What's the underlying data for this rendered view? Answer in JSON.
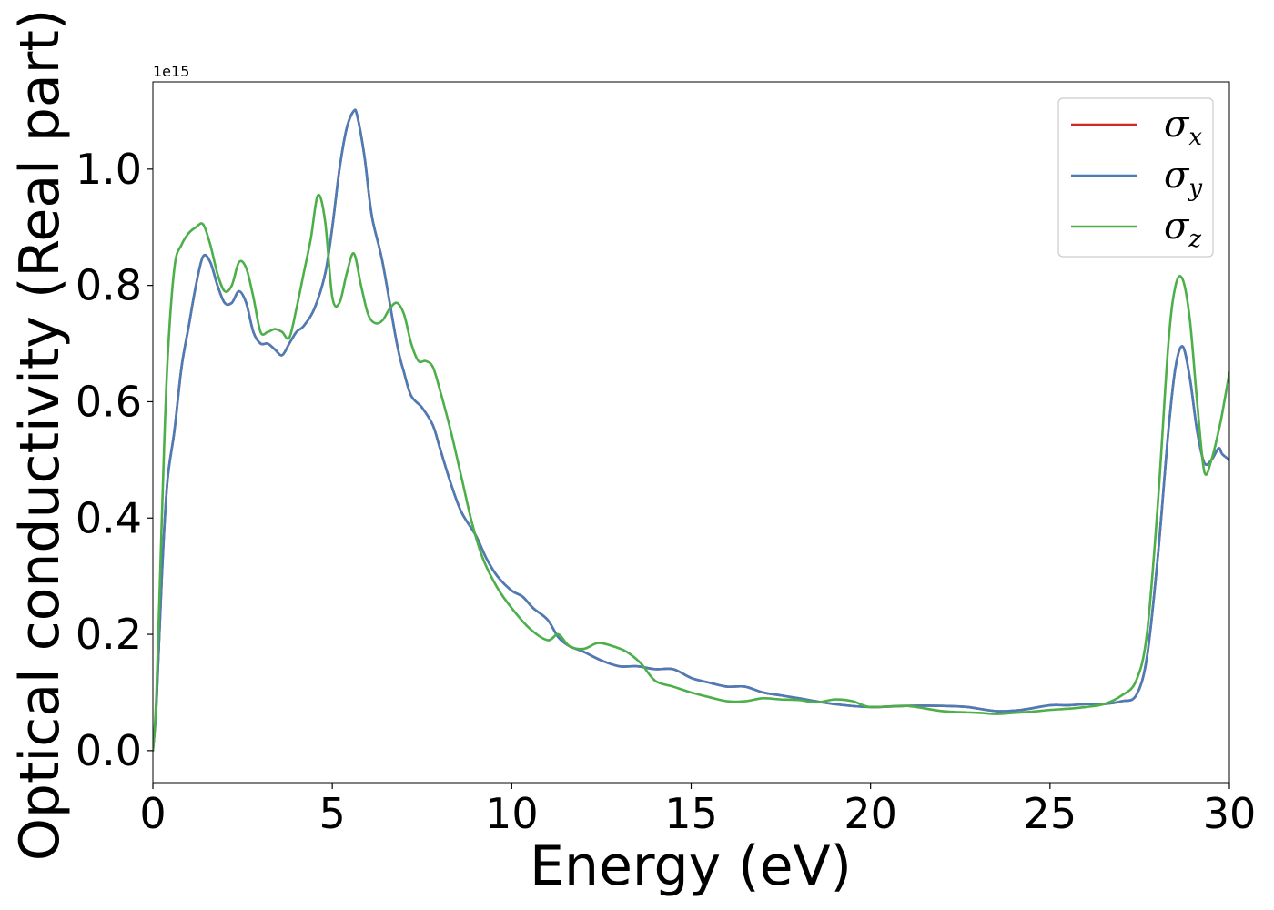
{
  "chart_data": {
    "type": "line",
    "title": "",
    "xlabel": "Energy (eV)",
    "ylabel": "Optical conductivity (Real part)",
    "y_offset_text": "1e15",
    "xlim": [
      0,
      30
    ],
    "ylim": [
      -0.055,
      1.15
    ],
    "y_scale": 1000000000000000.0,
    "grid": false,
    "legend_position": "top-right",
    "x_ticks": [
      0,
      5,
      10,
      15,
      20,
      25,
      30
    ],
    "x_tick_labels": [
      "0",
      "5",
      "10",
      "15",
      "20",
      "25",
      "30"
    ],
    "y_ticks": [
      0.0,
      0.2,
      0.4,
      0.6,
      0.8,
      1.0
    ],
    "y_tick_labels": [
      "0.0",
      "0.2",
      "0.4",
      "0.6",
      "0.8",
      "1.0"
    ],
    "series": [
      {
        "name": "σx",
        "symbol": "σ",
        "subscript": "x",
        "color": "#d62728",
        "x": [
          0,
          0.1,
          0.25,
          0.4,
          0.6,
          0.8,
          1.0,
          1.2,
          1.4,
          1.6,
          1.8,
          2.0,
          2.2,
          2.4,
          2.6,
          2.8,
          3.0,
          3.2,
          3.4,
          3.6,
          3.8,
          4.0,
          4.2,
          4.5,
          4.8,
          5.0,
          5.2,
          5.4,
          5.6,
          5.7,
          5.9,
          6.1,
          6.4,
          6.8,
          7.0,
          7.2,
          7.5,
          7.8,
          8.0,
          8.3,
          8.6,
          9.0,
          9.3,
          9.6,
          10.0,
          10.3,
          10.6,
          11.0,
          11.3,
          11.6,
          12.0,
          12.5,
          13.0,
          13.5,
          14.0,
          14.5,
          15.0,
          15.5,
          16.0,
          16.5,
          17.0,
          17.5,
          18.0,
          19.0,
          20.0,
          21.0,
          22.0,
          22.7,
          23.5,
          24.2,
          25.0,
          25.5,
          26.0,
          26.5,
          27.0,
          27.4,
          27.7,
          28.0,
          28.3,
          28.5,
          28.7,
          28.9,
          29.1,
          29.3,
          29.5,
          29.7,
          29.8,
          30.0
        ],
        "y": [
          0.0,
          0.08,
          0.3,
          0.46,
          0.55,
          0.66,
          0.73,
          0.8,
          0.85,
          0.84,
          0.8,
          0.77,
          0.77,
          0.79,
          0.77,
          0.72,
          0.7,
          0.7,
          0.69,
          0.68,
          0.7,
          0.72,
          0.73,
          0.76,
          0.82,
          0.9,
          1.0,
          1.07,
          1.1,
          1.09,
          1.02,
          0.92,
          0.84,
          0.7,
          0.65,
          0.61,
          0.59,
          0.56,
          0.52,
          0.46,
          0.41,
          0.37,
          0.33,
          0.3,
          0.275,
          0.265,
          0.245,
          0.225,
          0.195,
          0.18,
          0.17,
          0.155,
          0.145,
          0.145,
          0.14,
          0.14,
          0.125,
          0.117,
          0.11,
          0.11,
          0.1,
          0.095,
          0.09,
          0.08,
          0.075,
          0.077,
          0.077,
          0.075,
          0.068,
          0.07,
          0.078,
          0.078,
          0.08,
          0.08,
          0.085,
          0.095,
          0.16,
          0.33,
          0.55,
          0.66,
          0.695,
          0.64,
          0.55,
          0.495,
          0.5,
          0.52,
          0.51,
          0.5
        ]
      },
      {
        "name": "σy",
        "symbol": "σ",
        "subscript": "y",
        "color": "#4a7db8",
        "x": [
          0,
          0.1,
          0.25,
          0.4,
          0.6,
          0.8,
          1.0,
          1.2,
          1.4,
          1.6,
          1.8,
          2.0,
          2.2,
          2.4,
          2.6,
          2.8,
          3.0,
          3.2,
          3.4,
          3.6,
          3.8,
          4.0,
          4.2,
          4.5,
          4.8,
          5.0,
          5.2,
          5.4,
          5.6,
          5.7,
          5.9,
          6.1,
          6.4,
          6.8,
          7.0,
          7.2,
          7.5,
          7.8,
          8.0,
          8.3,
          8.6,
          9.0,
          9.3,
          9.6,
          10.0,
          10.3,
          10.6,
          11.0,
          11.3,
          11.6,
          12.0,
          12.5,
          13.0,
          13.5,
          14.0,
          14.5,
          15.0,
          15.5,
          16.0,
          16.5,
          17.0,
          17.5,
          18.0,
          19.0,
          20.0,
          21.0,
          22.0,
          22.7,
          23.5,
          24.2,
          25.0,
          25.5,
          26.0,
          26.5,
          27.0,
          27.4,
          27.7,
          28.0,
          28.3,
          28.5,
          28.7,
          28.9,
          29.1,
          29.3,
          29.5,
          29.7,
          29.8,
          30.0
        ],
        "y": [
          0.0,
          0.08,
          0.3,
          0.46,
          0.55,
          0.66,
          0.73,
          0.8,
          0.85,
          0.84,
          0.8,
          0.77,
          0.77,
          0.79,
          0.77,
          0.72,
          0.7,
          0.7,
          0.69,
          0.68,
          0.7,
          0.72,
          0.73,
          0.76,
          0.82,
          0.9,
          1.0,
          1.07,
          1.1,
          1.09,
          1.02,
          0.92,
          0.84,
          0.7,
          0.65,
          0.61,
          0.59,
          0.56,
          0.52,
          0.46,
          0.41,
          0.37,
          0.33,
          0.3,
          0.275,
          0.265,
          0.245,
          0.225,
          0.195,
          0.18,
          0.17,
          0.155,
          0.145,
          0.145,
          0.14,
          0.14,
          0.125,
          0.117,
          0.11,
          0.11,
          0.1,
          0.095,
          0.09,
          0.08,
          0.075,
          0.077,
          0.077,
          0.075,
          0.068,
          0.07,
          0.078,
          0.078,
          0.08,
          0.08,
          0.085,
          0.095,
          0.16,
          0.33,
          0.55,
          0.66,
          0.695,
          0.64,
          0.55,
          0.495,
          0.5,
          0.52,
          0.51,
          0.5
        ]
      },
      {
        "name": "σz",
        "symbol": "σ",
        "subscript": "z",
        "color": "#4daf4a",
        "x": [
          0,
          0.1,
          0.25,
          0.4,
          0.6,
          0.8,
          1.0,
          1.2,
          1.4,
          1.6,
          1.8,
          2.0,
          2.2,
          2.4,
          2.6,
          2.8,
          3.0,
          3.2,
          3.4,
          3.6,
          3.8,
          4.0,
          4.2,
          4.4,
          4.6,
          4.8,
          5.0,
          5.2,
          5.4,
          5.6,
          5.8,
          6.0,
          6.2,
          6.4,
          6.6,
          6.8,
          7.0,
          7.2,
          7.4,
          7.6,
          7.8,
          8.0,
          8.3,
          8.6,
          8.9,
          9.2,
          9.6,
          10.0,
          10.5,
          11.0,
          11.3,
          11.6,
          12.0,
          12.4,
          12.8,
          13.2,
          13.6,
          14.0,
          14.5,
          15.0,
          15.5,
          16.0,
          16.5,
          17.0,
          17.5,
          18.0,
          18.5,
          19.0,
          19.5,
          20.0,
          21.0,
          22.0,
          23.0,
          23.5,
          24.0,
          24.5,
          25.0,
          25.5,
          26.0,
          26.5,
          27.0,
          27.4,
          27.7,
          28.0,
          28.3,
          28.5,
          28.7,
          28.9,
          29.1,
          29.3,
          29.5,
          29.7,
          29.8,
          30.0
        ],
        "y": [
          0.0,
          0.1,
          0.4,
          0.66,
          0.83,
          0.87,
          0.89,
          0.9,
          0.905,
          0.87,
          0.82,
          0.79,
          0.8,
          0.84,
          0.83,
          0.78,
          0.72,
          0.72,
          0.725,
          0.72,
          0.71,
          0.76,
          0.82,
          0.88,
          0.955,
          0.91,
          0.78,
          0.77,
          0.82,
          0.855,
          0.8,
          0.75,
          0.735,
          0.74,
          0.76,
          0.77,
          0.75,
          0.7,
          0.67,
          0.67,
          0.66,
          0.62,
          0.55,
          0.47,
          0.39,
          0.33,
          0.28,
          0.245,
          0.21,
          0.19,
          0.2,
          0.18,
          0.175,
          0.185,
          0.18,
          0.17,
          0.15,
          0.12,
          0.11,
          0.1,
          0.092,
          0.085,
          0.085,
          0.09,
          0.088,
          0.087,
          0.083,
          0.088,
          0.085,
          0.075,
          0.077,
          0.068,
          0.065,
          0.063,
          0.065,
          0.067,
          0.07,
          0.072,
          0.075,
          0.08,
          0.095,
          0.12,
          0.2,
          0.42,
          0.7,
          0.8,
          0.81,
          0.74,
          0.6,
          0.48,
          0.5,
          0.55,
          0.58,
          0.65
        ]
      }
    ]
  }
}
